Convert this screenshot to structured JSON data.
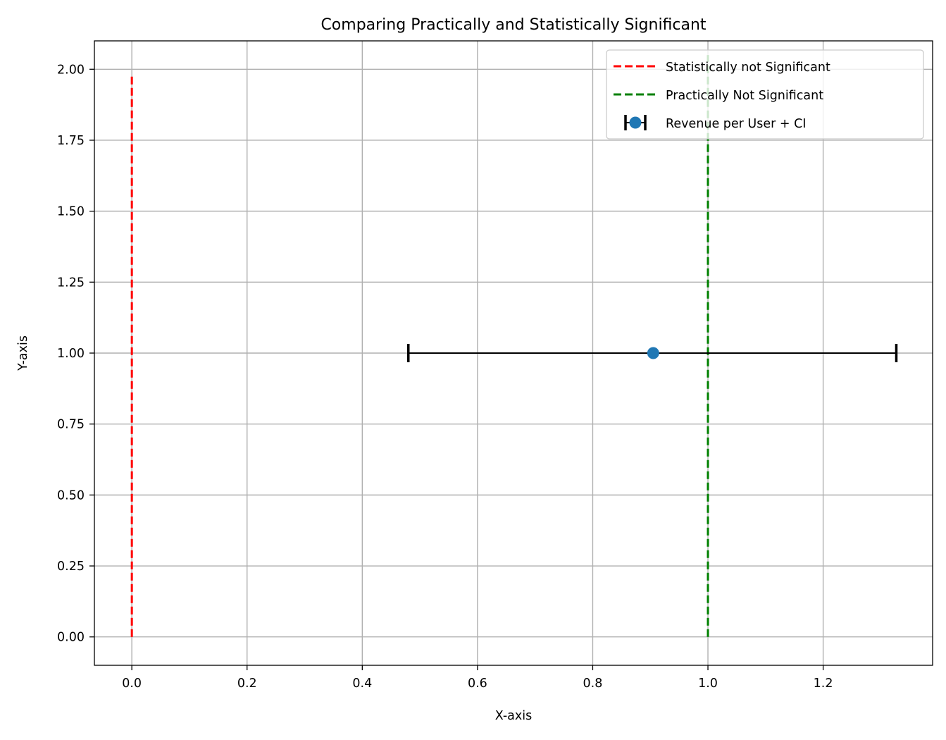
{
  "chart_data": {
    "type": "scatter",
    "title": "Comparing Practically and Statistically Significant",
    "xlabel": "X-axis",
    "ylabel": "Y-axis",
    "xlim": [
      -0.065,
      1.39
    ],
    "ylim": [
      -0.1,
      2.1
    ],
    "x_ticks": [
      0.0,
      0.2,
      0.4,
      0.6,
      0.8,
      1.0,
      1.2
    ],
    "x_tick_labels": [
      "0.0",
      "0.2",
      "0.4",
      "0.6",
      "0.8",
      "1.0",
      "1.2"
    ],
    "y_ticks": [
      0.0,
      0.25,
      0.5,
      0.75,
      1.0,
      1.25,
      1.5,
      1.75,
      2.0
    ],
    "y_tick_labels": [
      "0.00",
      "0.25",
      "0.50",
      "0.75",
      "1.00",
      "1.25",
      "1.50",
      "1.75",
      "2.00"
    ],
    "grid": true,
    "legend_position": "top-right",
    "series": [
      {
        "name": "Statistically not Significant",
        "kind": "vline-dashed",
        "color": "#ff0000",
        "x": 0.0,
        "y_range": [
          0.0,
          1.98
        ]
      },
      {
        "name": "Practically Not Significant",
        "kind": "vline-dashed",
        "color": "#008000",
        "x": 1.0,
        "y_range": [
          0.0,
          2.05
        ]
      },
      {
        "name": "Revenue per User + CI",
        "kind": "errorbar",
        "color": "#1f77b4",
        "error_color": "#000000",
        "x": 0.905,
        "y": 1.0,
        "x_low": 0.48,
        "x_high": 1.327
      }
    ]
  }
}
